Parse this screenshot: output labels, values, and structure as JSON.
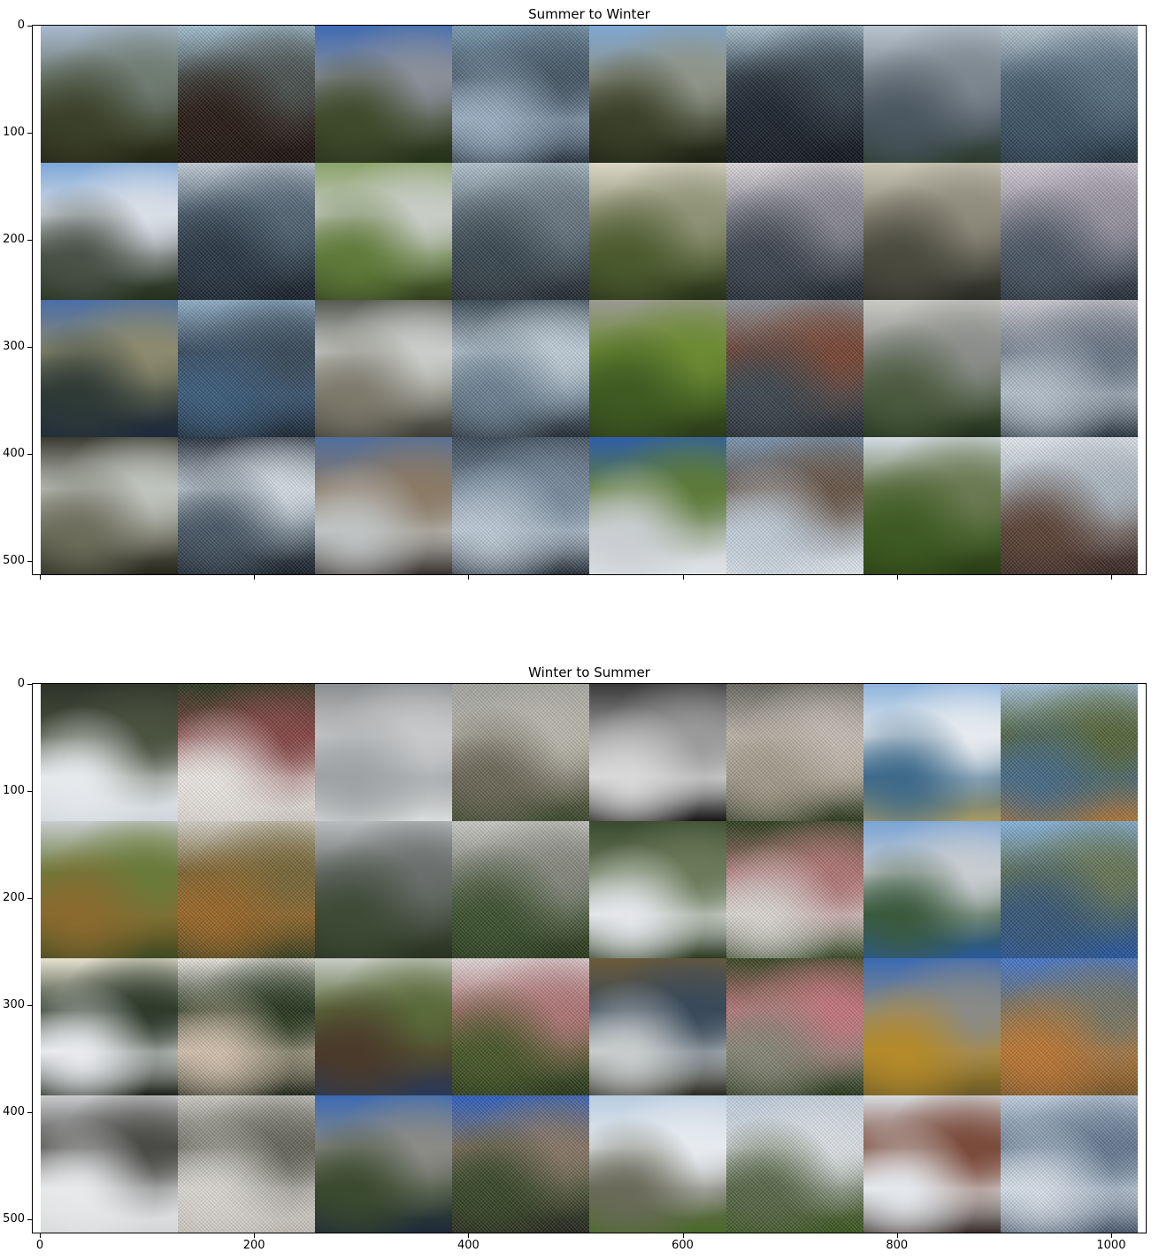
{
  "figure": {
    "panels": [
      {
        "title": "Summer to Winter",
        "yticks": [
          "0",
          "100",
          "200",
          "300",
          "400",
          "500"
        ],
        "xticks": [],
        "tiles": [
          {
            "kind": "real",
            "desc": "forest-valley",
            "c": [
              "#a9b9cf",
              "#6f7c72",
              "#3b4029",
              "#232514"
            ]
          },
          {
            "kind": "gen",
            "desc": "dark-forest-snow",
            "c": [
              "#a8c6d8",
              "#4e5654",
              "#2a1d16",
              "#1d1512"
            ]
          },
          {
            "kind": "real",
            "desc": "el-capitan",
            "c": [
              "#3f6bb4",
              "#8a8f99",
              "#3e4a2a",
              "#25301b"
            ]
          },
          {
            "kind": "gen",
            "desc": "waterfall-frost",
            "c": [
              "#7fa0b8",
              "#4a5b69",
              "#9fb4c8",
              "#283440"
            ]
          },
          {
            "kind": "real",
            "desc": "granite-dome",
            "c": [
              "#7fa7d2",
              "#8f9488",
              "#3a4029",
              "#1d2114"
            ]
          },
          {
            "kind": "gen",
            "desc": "dome-frost",
            "c": [
              "#b0c7d6",
              "#3c4a55",
              "#1f2630",
              "#14191e"
            ]
          },
          {
            "kind": "real",
            "desc": "cliff-face",
            "c": [
              "#b9c4cf",
              "#7d8790",
              "#4a5660",
              "#2b3a2c"
            ]
          },
          {
            "kind": "gen",
            "desc": "cliff-frost",
            "c": [
              "#c3d0da",
              "#5d7586",
              "#3f5668",
              "#263440"
            ]
          },
          {
            "kind": "real",
            "desc": "yosemite-falls",
            "c": [
              "#7ea7d8",
              "#d8dee6",
              "#4a5248",
              "#22301c"
            ]
          },
          {
            "kind": "gen",
            "desc": "falls-frost",
            "c": [
              "#c7d3de",
              "#566877",
              "#2b3946",
              "#1a232c"
            ]
          },
          {
            "kind": "real",
            "desc": "green-falls",
            "c": [
              "#8aa36a",
              "#c8ccc6",
              "#5f7a3a",
              "#31401f"
            ]
          },
          {
            "kind": "gen",
            "desc": "green-falls-frost",
            "c": [
              "#b8c8d4",
              "#6c7b86",
              "#3c4a52",
              "#262d33"
            ]
          },
          {
            "kind": "real",
            "desc": "cloudy-valley",
            "c": [
              "#d9d6c6",
              "#8f9276",
              "#4b5a2e",
              "#27321a"
            ]
          },
          {
            "kind": "gen",
            "desc": "cloudy-frost",
            "c": [
              "#e2dfe2",
              "#8e8d97",
              "#3e4651",
              "#222a32"
            ]
          },
          {
            "kind": "real",
            "desc": "misty-trees",
            "c": [
              "#c9c6b6",
              "#8e8a7c",
              "#4a4a3e",
              "#2a2b25"
            ]
          },
          {
            "kind": "gen",
            "desc": "misty-frost",
            "c": [
              "#d9d3da",
              "#9d98a6",
              "#4b5866",
              "#27313b"
            ]
          },
          {
            "kind": "real",
            "desc": "river-valley",
            "c": [
              "#4a6ea8",
              "#8c8a6e",
              "#2e3a36",
              "#1e2a3c"
            ]
          },
          {
            "kind": "gen",
            "desc": "river-frost",
            "c": [
              "#94b3cc",
              "#3c4d5c",
              "#3e5f7e",
              "#1c2834"
            ]
          },
          {
            "kind": "real",
            "desc": "rocky-cascade",
            "c": [
              "#575a52",
              "#c9ccc9",
              "#7d7a6c",
              "#3e3e36"
            ]
          },
          {
            "kind": "gen",
            "desc": "cascade-frost",
            "c": [
              "#3b4b57",
              "#c5d3dd",
              "#6f8394",
              "#232d35"
            ]
          },
          {
            "kind": "real",
            "desc": "pine-granite",
            "c": [
              "#9a9a92",
              "#6c8a34",
              "#3f5a22",
              "#2b3b1a"
            ]
          },
          {
            "kind": "gen",
            "desc": "pine-frost",
            "c": [
              "#8f969e",
              "#7a4a38",
              "#3f4a52",
              "#262b30"
            ]
          },
          {
            "kind": "real",
            "desc": "foggy-peaks",
            "c": [
              "#c9c9c4",
              "#8b8d8a",
              "#4a5a3e",
              "#20301c"
            ]
          },
          {
            "kind": "gen",
            "desc": "foggy-frost",
            "c": [
              "#d5d2d8",
              "#6e7b8a",
              "#b9c6d1",
              "#2a3540"
            ]
          },
          {
            "kind": "real",
            "desc": "creek-rocks",
            "c": [
              "#3b3b30",
              "#bfc3bd",
              "#6d6d5c",
              "#26261c"
            ]
          },
          {
            "kind": "gen",
            "desc": "creek-frost",
            "c": [
              "#2a3440",
              "#d8e2ea",
              "#4a5a68",
              "#1a222a"
            ]
          },
          {
            "kind": "real",
            "desc": "rainbow-falls",
            "c": [
              "#4f6e9e",
              "#8a7a66",
              "#bfc3c3",
              "#3a3430"
            ]
          },
          {
            "kind": "gen",
            "desc": "rainbow-frost",
            "c": [
              "#3e4c5a",
              "#7c8ea0",
              "#c2d0dc",
              "#26303a"
            ]
          },
          {
            "kind": "real",
            "desc": "lone-tree",
            "c": [
              "#2f5ea8",
              "#5d7a3a",
              "#c9cdd0",
              "#dfe3e6"
            ]
          },
          {
            "kind": "gen",
            "desc": "lone-tree-frost",
            "c": [
              "#7d99b4",
              "#6c5a4c",
              "#c5d2de",
              "#e4ebf0"
            ]
          },
          {
            "kind": "real",
            "desc": "green-hills",
            "c": [
              "#d2dbe2",
              "#6a7a52",
              "#3e5a22",
              "#2a3d16"
            ]
          },
          {
            "kind": "gen",
            "desc": "hills-frost",
            "c": [
              "#e8eef2",
              "#b0bcc6",
              "#5e4438",
              "#3a2c28"
            ]
          }
        ]
      },
      {
        "title": "Winter to Summer",
        "yticks": [
          "0",
          "100",
          "200",
          "300",
          "400",
          "500"
        ],
        "xticks": [
          "0",
          "200",
          "400",
          "600",
          "800",
          "1000"
        ],
        "tiles": [
          {
            "kind": "real",
            "desc": "snow-path",
            "c": [
              "#2e3328",
              "#4b5240",
              "#e6e9ec",
              "#cfd5da"
            ]
          },
          {
            "kind": "gen",
            "desc": "snow-path-green",
            "c": [
              "#2f3a24",
              "#8a4a4a",
              "#f0ece8",
              "#d8d2cc"
            ]
          },
          {
            "kind": "real",
            "desc": "frosted-tree",
            "c": [
              "#8b8e90",
              "#c6c8ca",
              "#9fa2a4",
              "#dadcdd"
            ]
          },
          {
            "kind": "gen",
            "desc": "tree-thaw",
            "c": [
              "#a9aaa6",
              "#c0bdb2",
              "#6e6a5a",
              "#3d4a2c"
            ]
          },
          {
            "kind": "real",
            "desc": "bw-waterfall",
            "c": [
              "#3a3a3a",
              "#9a9a9a",
              "#d8d8d8",
              "#161616"
            ]
          },
          {
            "kind": "gen",
            "desc": "bw-waterfall-green",
            "c": [
              "#6a6a62",
              "#c9c2b8",
              "#a8a090",
              "#2e3a22"
            ]
          },
          {
            "kind": "real",
            "desc": "snowy-lake",
            "c": [
              "#8db4dc",
              "#e6eaee",
              "#3e6a8a",
              "#a89a62"
            ]
          },
          {
            "kind": "gen",
            "desc": "lake-summer",
            "c": [
              "#a9c6e0",
              "#5a6a3e",
              "#4a6e8a",
              "#b27836"
            ]
          },
          {
            "kind": "real",
            "desc": "dome-autumn",
            "c": [
              "#c8ccce",
              "#6a7a3a",
              "#8a6a2e",
              "#3e4a22"
            ]
          },
          {
            "kind": "gen",
            "desc": "dome-autumn-gen",
            "c": [
              "#d8d4cc",
              "#7a6a3a",
              "#9e6a2a",
              "#3a4222"
            ]
          },
          {
            "kind": "real",
            "desc": "grey-valley",
            "c": [
              "#b8bcbe",
              "#6a6e6c",
              "#3e4a36",
              "#2a3322"
            ]
          },
          {
            "kind": "gen",
            "desc": "grey-valley-gen",
            "c": [
              "#cfd0cc",
              "#8a8c82",
              "#3e5430",
              "#2a3a1e"
            ]
          },
          {
            "kind": "real",
            "desc": "snow-meadow",
            "c": [
              "#3a4a2e",
              "#6a7a5a",
              "#e4e6ea",
              "#2a3a20"
            ]
          },
          {
            "kind": "gen",
            "desc": "meadow-gen",
            "c": [
              "#2e4220",
              "#b47a7a",
              "#e0dcd8",
              "#3a4a28"
            ]
          },
          {
            "kind": "real",
            "desc": "alpine-lake",
            "c": [
              "#7aa4d6",
              "#c8ccd0",
              "#3a5a3e",
              "#2a5a9a"
            ]
          },
          {
            "kind": "gen",
            "desc": "alpine-lake-gen",
            "c": [
              "#8ab8e6",
              "#6a7a5a",
              "#3a5a7a",
              "#2a5aa0"
            ]
          },
          {
            "kind": "real",
            "desc": "snow-river-cliff",
            "c": [
              "#e6e2d2",
              "#2e3a2a",
              "#e8eaee",
              "#1c2218"
            ]
          },
          {
            "kind": "gen",
            "desc": "river-cliff-gen",
            "c": [
              "#f0ece6",
              "#2a3a22",
              "#d8c6b2",
              "#1e2618"
            ]
          },
          {
            "kind": "real",
            "desc": "sequoia-hiker",
            "c": [
              "#c8ccc6",
              "#5a6a3a",
              "#4a3a2a",
              "#2a3a5a"
            ]
          },
          {
            "kind": "gen",
            "desc": "sequoia-gen",
            "c": [
              "#e6dcde",
              "#b47a7a",
              "#4a5a2a",
              "#2a3a1e"
            ]
          },
          {
            "kind": "real",
            "desc": "creek-stones",
            "c": [
              "#6a5a3a",
              "#3a4a5a",
              "#c8cccc",
              "#2a2a22"
            ]
          },
          {
            "kind": "gen",
            "desc": "creek-stones-gen",
            "c": [
              "#3a4a26",
              "#c87a82",
              "#8a8a7a",
              "#2a3a1e"
            ]
          },
          {
            "kind": "real",
            "desc": "peak-shrubs",
            "c": [
              "#3a6ab4",
              "#8a8a86",
              "#b48a2a",
              "#6a5a2a"
            ]
          },
          {
            "kind": "gen",
            "desc": "peak-shrubs-gen",
            "c": [
              "#4a7ad0",
              "#7a7a6a",
              "#c07a36",
              "#7a5a2e"
            ]
          },
          {
            "kind": "real",
            "desc": "snowy-picnic",
            "c": [
              "#c8cacc",
              "#4a4a46",
              "#e6e8ea",
              "#d4d6d8"
            ]
          },
          {
            "kind": "gen",
            "desc": "picnic-gen",
            "c": [
              "#d4d2cc",
              "#6a6a5e",
              "#e0ddd8",
              "#c8c4bc"
            ]
          },
          {
            "kind": "real",
            "desc": "el-cap-river",
            "c": [
              "#3a6ab4",
              "#8a8a86",
              "#3a4a2e",
              "#1e2a3a"
            ]
          },
          {
            "kind": "gen",
            "desc": "el-cap-river-gen",
            "c": [
              "#2e62c6",
              "#8a7a6a",
              "#3a4a2a",
              "#2a2a22"
            ]
          },
          {
            "kind": "real",
            "desc": "distant-mountains",
            "c": [
              "#b8cce0",
              "#e6eaee",
              "#6a6a5a",
              "#4a6a2a"
            ]
          },
          {
            "kind": "gen",
            "desc": "mountains-gen",
            "c": [
              "#c2d2e2",
              "#e2e6ea",
              "#5a6a4a",
              "#3e5a22"
            ]
          },
          {
            "kind": "real",
            "desc": "snow-forest",
            "c": [
              "#d8dce0",
              "#7a4a3a",
              "#e4e8ec",
              "#3a2e2a"
            ]
          },
          {
            "kind": "gen",
            "desc": "snow-forest-gen",
            "c": [
              "#c8d6e6",
              "#6a7e96",
              "#dce6f0",
              "#4a5a6e"
            ]
          }
        ]
      }
    ]
  },
  "chart_data": [
    {
      "type": "heatmap",
      "title": "Summer to Winter",
      "xlabel": "",
      "ylabel": "",
      "yticks": [
        0,
        100,
        200,
        300,
        400,
        500
      ],
      "xticks": [],
      "grid": false,
      "image_rows": 4,
      "image_cols": 8
    },
    {
      "type": "heatmap",
      "title": "Winter to Summer",
      "xlabel": "",
      "ylabel": "",
      "yticks": [
        0,
        100,
        200,
        300,
        400,
        500
      ],
      "xticks": [
        0,
        200,
        400,
        600,
        800,
        1000
      ],
      "grid": false,
      "image_rows": 4,
      "image_cols": 8
    }
  ]
}
